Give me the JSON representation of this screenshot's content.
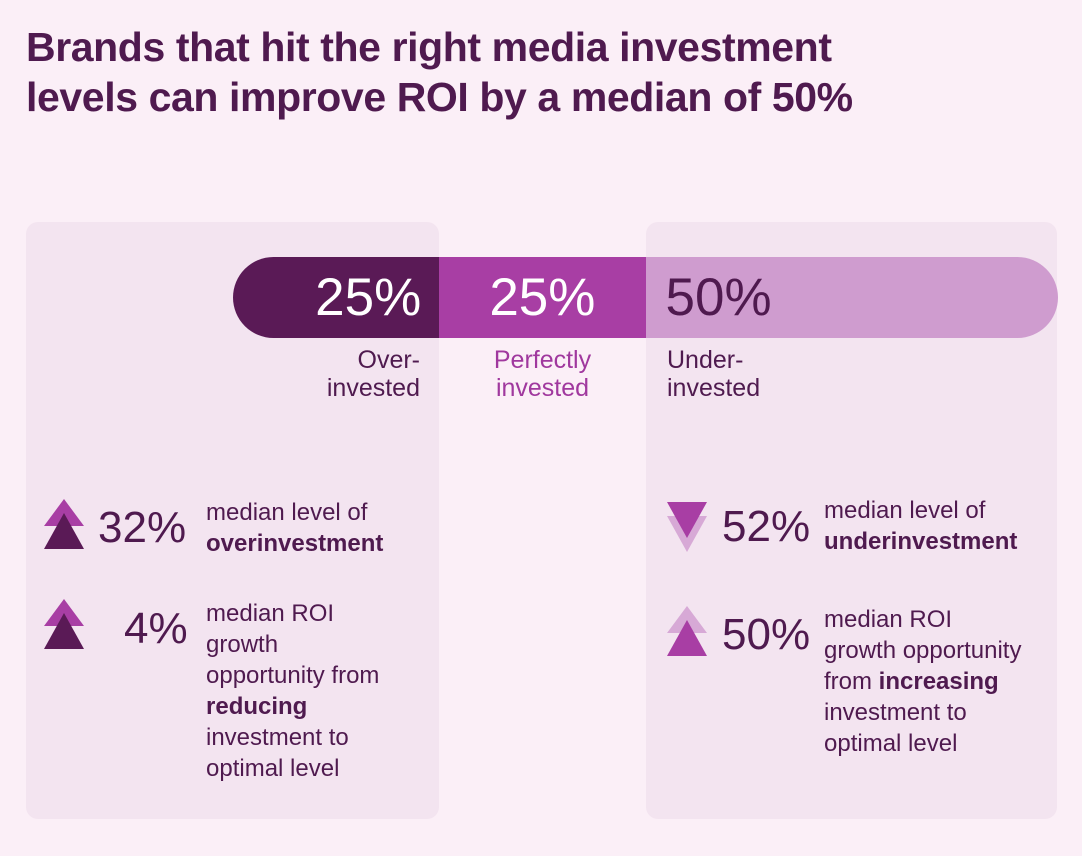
{
  "title": {
    "line1": "Brands that hit the right media investment",
    "line2": "levels can improve ROI by a median of 50%"
  },
  "colors": {
    "background": "#fbeff7",
    "panel": "#f3e4f0",
    "dark_plum": "#5a1a56",
    "magenta": "#a83ea4",
    "light_orchid": "#cf9ccf",
    "text": "#4f1a4f"
  },
  "chart_data": {
    "type": "bar",
    "orientation": "horizontal-stacked",
    "categories": [
      "Over-invested",
      "Perfectly invested",
      "Under-invested"
    ],
    "values": [
      25,
      25,
      50
    ],
    "value_labels": [
      "25%",
      "25%",
      "50%"
    ],
    "label_lines": [
      [
        "Over-",
        "invested"
      ],
      [
        "Perfectly",
        "invested"
      ],
      [
        "Under-",
        "invested"
      ]
    ],
    "colors": [
      "#5a1a56",
      "#a83ea4",
      "#cf9ccf"
    ],
    "value_text_colors": [
      "#ffffff",
      "#ffffff",
      "#4f1a4f"
    ]
  },
  "stats": [
    {
      "icon": "double-up-arrow-icon",
      "value": "32%",
      "desc_pre": "median level of ",
      "desc_bold": "overinvestment",
      "desc_post": ""
    },
    {
      "icon": "double-up-arrow-icon",
      "value": "4%",
      "desc_pre": "median ROI growth opportunity from ",
      "desc_bold": "reducing",
      "desc_post": " investment to optimal level"
    },
    {
      "icon": "double-down-arrow-icon",
      "value": "52%",
      "desc_pre": "median level of ",
      "desc_bold": "underinvestment",
      "desc_post": ""
    },
    {
      "icon": "double-up-arrow-light-icon",
      "value": "50%",
      "desc_pre": "median ROI growth opportunity from ",
      "desc_bold": "increasing",
      "desc_post": " investment to optimal level"
    }
  ]
}
